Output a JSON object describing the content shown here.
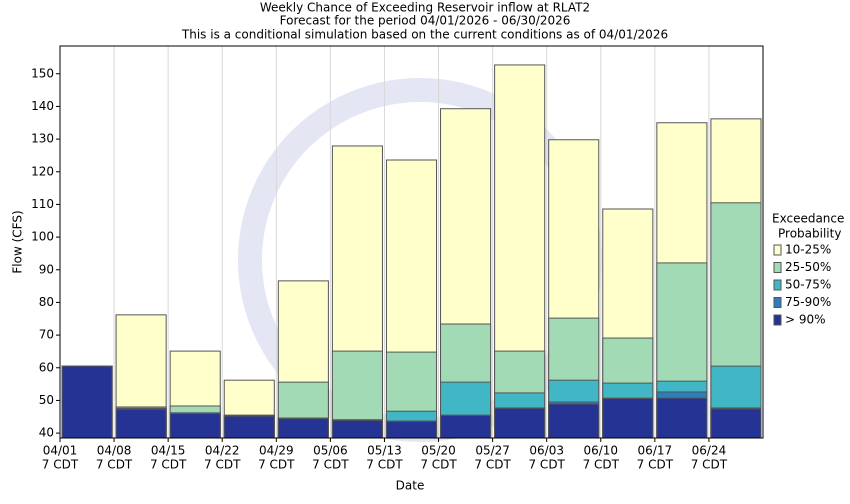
{
  "chart_data": {
    "type": "bar",
    "overlap": true,
    "title": [
      "Weekly Chance of Exceeding Reservoir inflow at RLAT2",
      "Forecast for the period 04/01/2026 - 06/30/2026",
      "This is a conditional simulation based on the current conditions as of 04/01/2026"
    ],
    "y_label": "Flow (CFS)",
    "x_label": "Date",
    "categories": [
      "04/01",
      "04/08",
      "04/15",
      "04/22",
      "04/29",
      "05/06",
      "05/13",
      "05/20",
      "05/27",
      "06/03",
      "06/10",
      "06/17",
      "06/24"
    ],
    "x_tick_sub": "7 CDT",
    "legend_title": [
      "Exceedance",
      "Probability"
    ],
    "series": [
      {
        "name": "10-25%",
        "color": "#ffffcc",
        "values": [
          60.5,
          76.2,
          65.1,
          56.2,
          86.6,
          127.9,
          123.6,
          139.3,
          152.7,
          129.8,
          108.6,
          135,
          136.2
        ]
      },
      {
        "name": "25-50%",
        "color": "#a1dab4",
        "values": [
          60.5,
          48,
          48.3,
          45.5,
          55.6,
          65.1,
          64.8,
          73.4,
          65.1,
          75.2,
          69.1,
          92.1,
          110.5
        ]
      },
      {
        "name": "50-75%",
        "color": "#41b6c4",
        "values": [
          60.5,
          47.6,
          46.2,
          45.4,
          44.6,
          44.1,
          46.7,
          55.6,
          52.3,
          56.2,
          55.3,
          55.9,
          60.5
        ]
      },
      {
        "name": "75-90%",
        "color": "#2c7fb8",
        "values": [
          60.5,
          47.5,
          46.1,
          45.3,
          44.5,
          44,
          43.7,
          45.5,
          47.7,
          49.5,
          50.7,
          52.6,
          47.7
        ]
      },
      {
        "name": "> 90%",
        "color": "#253494",
        "values": [
          60.5,
          47.3,
          46,
          45.2,
          44.4,
          43.9,
          43.6,
          45.4,
          47.6,
          48.9,
          50.6,
          50.7,
          47.4
        ]
      }
    ],
    "ylim": [
      38.5,
      158.5
    ],
    "yticks": [
      40,
      50,
      60,
      70,
      80,
      90,
      100,
      110,
      120,
      130,
      140,
      150
    ],
    "grid": true
  }
}
